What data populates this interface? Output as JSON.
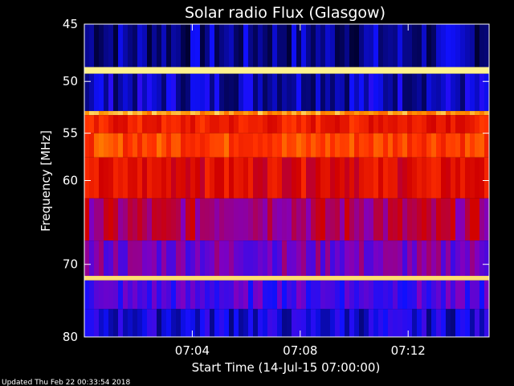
{
  "chart_data": {
    "type": "heatmap",
    "title": "Solar radio Flux (Glasgow)",
    "xlabel": "Start Time (14-Jul-15 07:00:00)",
    "ylabel": "Frequency [MHz]",
    "x_range_minutes": [
      0,
      15
    ],
    "x_ticks": [
      {
        "minute": 4,
        "label": "07:04"
      },
      {
        "minute": 8,
        "label": "07:08"
      },
      {
        "minute": 12,
        "label": "07:12"
      }
    ],
    "y_range_mhz": [
      45,
      80
    ],
    "y_scale": "log",
    "y_ticks": [
      {
        "mhz": 45,
        "label": "45"
      },
      {
        "mhz": 50,
        "label": "50"
      },
      {
        "mhz": 55,
        "label": "55"
      },
      {
        "mhz": 60,
        "label": "60"
      },
      {
        "mhz": 70,
        "label": "70"
      },
      {
        "mhz": 80,
        "label": "80"
      }
    ],
    "intensity_bands": [
      {
        "from_mhz": 45,
        "to_mhz": 48.7,
        "level": 0.08
      },
      {
        "from_mhz": 48.7,
        "to_mhz": 49.3,
        "level": 0.98
      },
      {
        "from_mhz": 49.3,
        "to_mhz": 52.8,
        "level": 0.12
      },
      {
        "from_mhz": 52.8,
        "to_mhz": 53.2,
        "level": 0.85
      },
      {
        "from_mhz": 53.2,
        "to_mhz": 55.0,
        "level": 0.6
      },
      {
        "from_mhz": 55.0,
        "to_mhz": 57.5,
        "level": 0.7
      },
      {
        "from_mhz": 57.5,
        "to_mhz": 62.0,
        "level": 0.55
      },
      {
        "from_mhz": 62.0,
        "to_mhz": 67.0,
        "level": 0.42
      },
      {
        "from_mhz": 67.0,
        "to_mhz": 71.5,
        "level": 0.32
      },
      {
        "from_mhz": 71.5,
        "to_mhz": 72.1,
        "level": 0.95
      },
      {
        "from_mhz": 72.1,
        "to_mhz": 76.0,
        "level": 0.25
      },
      {
        "from_mhz": 76.0,
        "to_mhz": 80.0,
        "level": 0.15
      }
    ],
    "colormap": [
      "#000033",
      "#1010ff",
      "#8000c0",
      "#d00000",
      "#ff3000",
      "#ff9000",
      "#ffffa0"
    ]
  },
  "footer": {
    "updated": "Updated Thu Feb 22 00:33:54 2018"
  }
}
